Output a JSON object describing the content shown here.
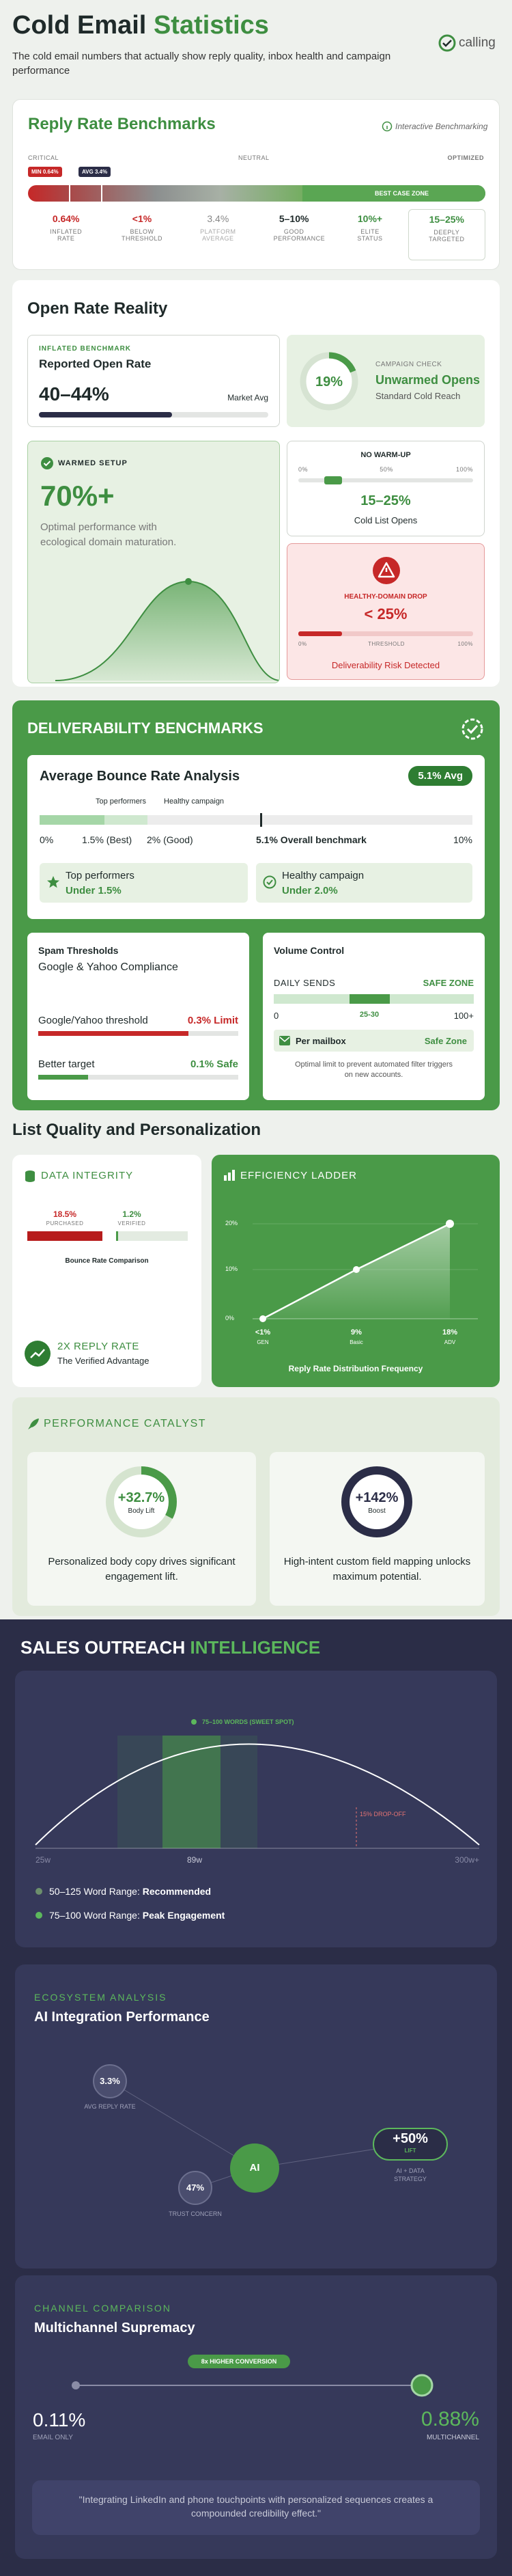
{
  "header": {
    "title_lead": "Cold Email",
    "title_accent": "Statistics",
    "subtitle": "The cold email numbers that actually show reply quality, inbox health and campaign performance",
    "logo": "calling"
  },
  "reply_rate": {
    "title": "Reply Rate Benchmarks",
    "badge": "Interactive Benchmarking",
    "scale": [
      "CRITICAL",
      "NEUTRAL",
      "OPTIMIZED"
    ],
    "markers": [
      "MIN 0.64%",
      "AVG 3.4%"
    ],
    "zone": "BEST CASE ZONE",
    "tiers": [
      {
        "value": "0.64%",
        "label": "INFLATED RATE"
      },
      {
        "value": "<1%",
        "label": "BELOW THRESHOLD"
      },
      {
        "value": "3.4%",
        "label": "PLATFORM AVERAGE"
      },
      {
        "value": "5–10%",
        "label": "GOOD PERFORMANCE"
      },
      {
        "value": "10%+",
        "label": "ELITE STATUS"
      },
      {
        "value": "15–25%",
        "label": "DEEPLY TARGETED"
      }
    ]
  },
  "open_rate": {
    "heading": "Open Rate Reality",
    "inflated": {
      "eyebrow": "INFLATED BENCHMARK",
      "title": "Reported Open Rate",
      "value": "40–44%",
      "note": "Market Avg"
    },
    "campaign": {
      "ring": "19%",
      "eyebrow": "CAMPAIGN CHECK",
      "title": "Unwarmed Opens",
      "note": "Standard Cold Reach"
    },
    "warmed": {
      "eyebrow": "WARMED SETUP",
      "value": "70%+",
      "text": "Optimal performance with ecological domain maturation."
    },
    "no_warmup": {
      "eyebrow": "NO WARM-UP",
      "scale": [
        "0%",
        "50%",
        "100%"
      ],
      "value": "15–25%",
      "note": "Cold List Opens"
    },
    "drop": {
      "eyebrow": "HEALTHY-DOMAIN DROP",
      "value": "< 25%",
      "scale": [
        "0%",
        "THRESHOLD",
        "100%"
      ],
      "note": "Deliverability Risk Detected"
    }
  },
  "deliverability": {
    "heading": "DELIVERABILITY BENCHMARKS",
    "bounce": {
      "title": "Average Bounce Rate Analysis",
      "badge": "5.1% Avg",
      "legend": [
        "Top performers",
        "Healthy campaign"
      ],
      "axis": [
        "0%",
        "1.5% (Best)",
        "2% (Good)",
        "5.1% Overall benchmark",
        "10%"
      ],
      "boxes": [
        {
          "title": "Top performers",
          "value": "Under 1.5%"
        },
        {
          "title": "Healthy campaign",
          "value": "Under 2.0%"
        }
      ]
    },
    "spam": {
      "title": "Spam Thresholds",
      "subtitle": "Google & Yahoo Compliance",
      "rows": [
        {
          "label": "Google/Yahoo threshold",
          "value": "0.3% Limit"
        },
        {
          "label": "Better target",
          "value": "0.1% Safe"
        }
      ]
    },
    "volume": {
      "title": "Volume Control",
      "label": "DAILY SENDS",
      "status": "SAFE ZONE",
      "scale": [
        "0",
        "25-30",
        "100+"
      ],
      "box_label": "Per mailbox",
      "box_value": "Safe Zone",
      "note": "Optimal limit to prevent automated filter triggers on new accounts."
    }
  },
  "list_quality": {
    "heading": "List Quality and Personalization",
    "integrity": {
      "title": "DATA INTEGRITY",
      "bars": [
        {
          "value": "18.5%",
          "label": "PURCHASED"
        },
        {
          "value": "1.2%",
          "label": "VERIFIED"
        }
      ],
      "caption": "Bounce Rate Comparison",
      "highlight": "2X REPLY RATE",
      "highlight_note": "The Verified Advantage"
    },
    "ladder": {
      "title": "EFFICIENCY LADDER",
      "y_labels": [
        "20%",
        "10%",
        "0%"
      ],
      "points": [
        {
          "value": "<1%",
          "label": "GEN"
        },
        {
          "value": "9%",
          "label": "Basic"
        },
        {
          "value": "18%",
          "label": "ADV"
        }
      ],
      "caption": "Reply Rate Distribution Frequency"
    }
  },
  "catalyst": {
    "title": "PERFORMANCE CATALYST",
    "cards": [
      {
        "value": "+32.7%",
        "label": "Body Lift",
        "text": "Personalized body copy drives significant engagement lift."
      },
      {
        "value": "+142%",
        "label": "Boost",
        "text": "High-intent custom field mapping unlocks maximum potential."
      }
    ]
  },
  "intelligence": {
    "title_lead": "SALES OUTREACH",
    "title_accent": "INTELLIGENCE",
    "words": {
      "marker": "75–100 WORDS (SWEET SPOT)",
      "axis": [
        "25w",
        "89w",
        "300w+"
      ],
      "dropoff": "15% DROP-OFF",
      "legend": [
        {
          "range": "50–125 Word Range:",
          "label": "Recommended"
        },
        {
          "range": "75–100 Word Range:",
          "label": "Peak Engagement"
        }
      ]
    },
    "ecosystem": {
      "eyebrow": "ECOSYSTEM ANALYSIS",
      "title": "AI Integration Performance",
      "nodes": [
        {
          "value": "3.3%",
          "label": "AVG REPLY RATE"
        },
        {
          "value": "AI"
        },
        {
          "value": "+50%",
          "sub": "LIFT",
          "label": "AI + DATA STRATEGY"
        },
        {
          "value": "47%",
          "label": "TRUST CONCERN"
        }
      ]
    },
    "channel": {
      "eyebrow": "CHANNEL COMPARISON",
      "title": "Multichannel Supremacy",
      "badge": "8x HIGHER CONVERSION",
      "email": {
        "value": "0.11%",
        "label": "EMAIL ONLY"
      },
      "multi": {
        "value": "0.88%",
        "label": "MULTICHANNEL"
      },
      "quote": "\"Integrating LinkedIn and phone touchpoints with personalized sequences creates a compounded credibility effect.\""
    }
  }
}
